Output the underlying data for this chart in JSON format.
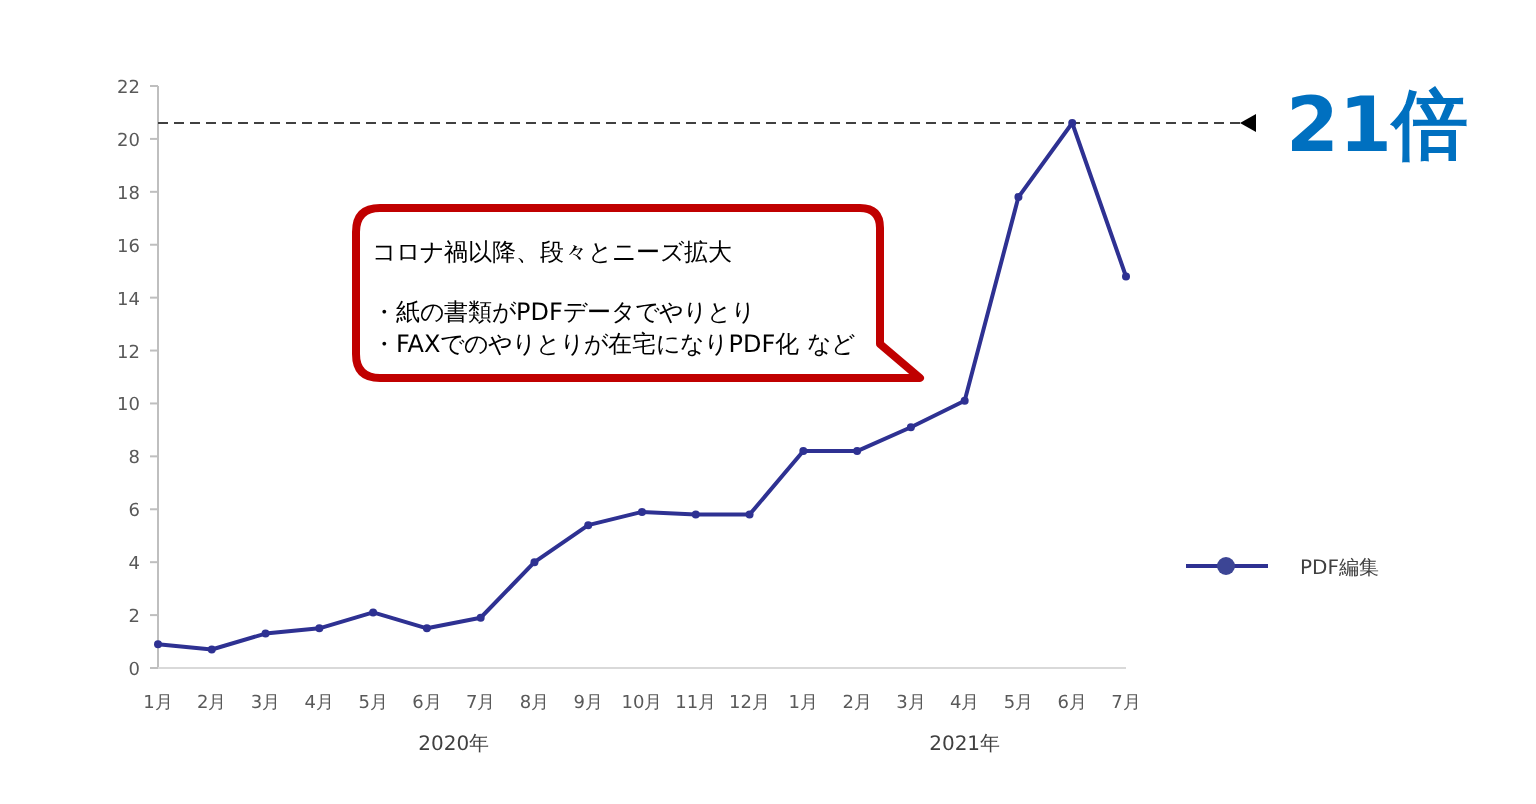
{
  "chart_data": {
    "type": "line",
    "categories": [
      "1月",
      "2月",
      "3月",
      "4月",
      "5月",
      "6月",
      "7月",
      "8月",
      "9月",
      "10月",
      "11月",
      "12月",
      "1月",
      "2月",
      "3月",
      "4月",
      "5月",
      "6月",
      "7月"
    ],
    "series": [
      {
        "name": "PDF編集",
        "color": "#2e3192",
        "values": [
          0.9,
          0.7,
          1.3,
          1.5,
          2.1,
          1.5,
          1.9,
          4.0,
          5.4,
          5.9,
          5.8,
          5.8,
          8.2,
          8.2,
          9.1,
          10.1,
          17.8,
          20.6,
          14.8
        ]
      }
    ],
    "ylim": [
      0,
      22
    ],
    "yticks": [
      0,
      2,
      4,
      6,
      8,
      10,
      12,
      14,
      16,
      18,
      20,
      22
    ],
    "ref_lines": [
      {
        "axis": "y",
        "value": 20.6,
        "label": "21倍",
        "color": "#404040",
        "line_style": "dashed"
      }
    ],
    "annotations": [
      "2020年",
      "2021年",
      "コロナ禍以降、段々とニーズ拡大",
      "・紙の書類がPDFデータでやりとり",
      "・FAXでのやりとりが在宅になりPDF化 など"
    ],
    "legend": "right",
    "marker": "circle",
    "line_style": "solid",
    "grid": false
  }
}
